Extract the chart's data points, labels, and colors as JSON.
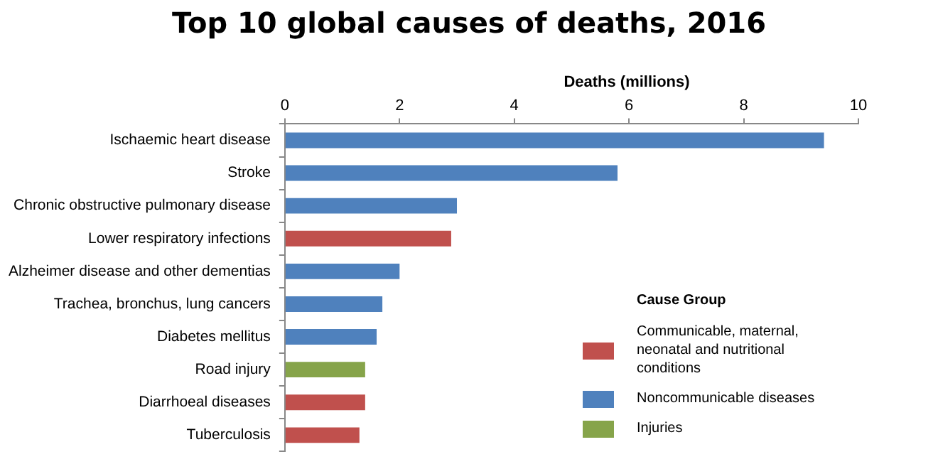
{
  "chart_data": {
    "type": "bar",
    "orientation": "horizontal",
    "stacked": true,
    "title": "Top 10 global causes of deaths, 2016",
    "xlabel": "Deaths (millions)",
    "legend_title": "Cause Group",
    "categories": [
      "Ischaemic heart disease",
      "Stroke",
      "Chronic obstructive pulmonary disease",
      "Lower respiratory infections",
      "Alzheimer disease and other dementias",
      "Trachea, bronchus, lung cancers",
      "Diabetes mellitus",
      "Road injury",
      "Diarrhoeal diseases",
      "Tuberculosis"
    ],
    "series": [
      {
        "name": "Communicable, maternal, neonatal and nutritional conditions",
        "color": "#c0504d",
        "values": [
          null,
          null,
          null,
          2.9,
          null,
          null,
          null,
          null,
          1.4,
          1.3
        ]
      },
      {
        "name": "Noncommunicable diseases",
        "color": "#4f81bd",
        "values": [
          9.4,
          5.8,
          3.0,
          null,
          2.0,
          1.7,
          1.6,
          null,
          null,
          null
        ]
      },
      {
        "name": "Injuries",
        "color": "#86a44a",
        "values": [
          null,
          null,
          null,
          null,
          null,
          null,
          null,
          1.4,
          null,
          null
        ]
      }
    ],
    "xlim": [
      0,
      10
    ],
    "xticks": [
      0,
      2,
      4,
      6,
      8,
      10
    ],
    "grid": false,
    "legend": "bottom right"
  }
}
